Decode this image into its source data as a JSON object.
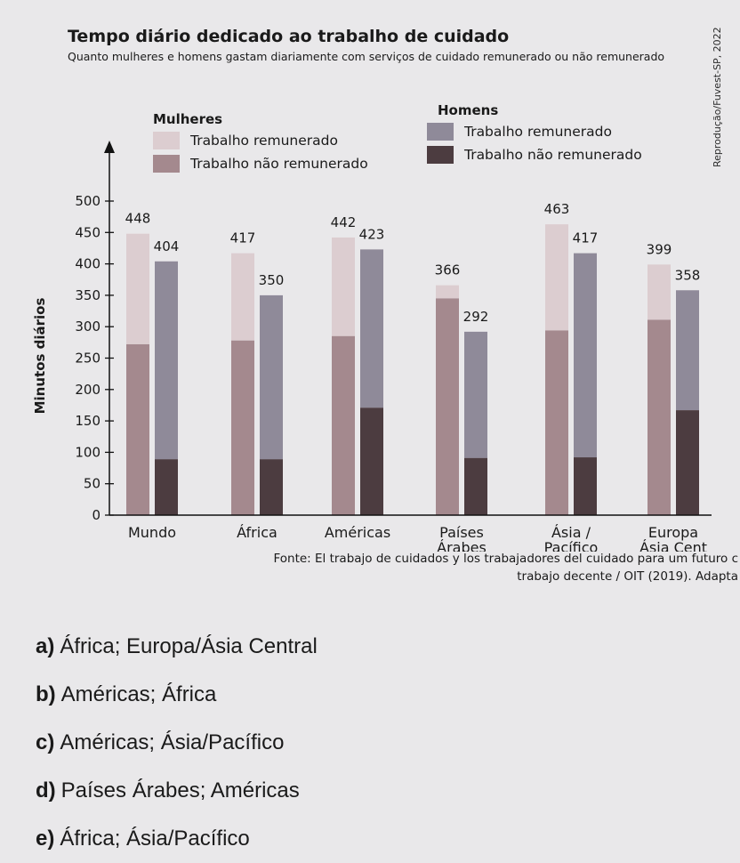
{
  "title": "Tempo diário dedicado ao trabalho de cuidado",
  "subtitle": "Quanto mulheres e homens gastam diariamente com serviços de cuidado remunerado ou não remunerado",
  "side_note": "Reprodução/Fuvest-SP, 2022",
  "legend": {
    "women_title": "Mulheres",
    "men_title": "Homens",
    "women_paid": "Trabalho remunerado",
    "women_unpaid": "Trabalho não remunerado",
    "men_paid": "Trabalho remunerado",
    "men_unpaid": "Trabalho não remunerado"
  },
  "colors": {
    "women_paid": "#dccdd0",
    "women_unpaid": "#a4898e",
    "men_paid": "#8f8a99",
    "men_unpaid": "#4c3c40"
  },
  "chart_data": {
    "type": "bar",
    "ylabel": "Minutos diários",
    "ylim": [
      0,
      500
    ],
    "yticks": [
      0,
      50,
      100,
      150,
      200,
      250,
      300,
      350,
      400,
      450,
      500
    ],
    "categories": [
      [
        "Mundo"
      ],
      [
        "África"
      ],
      [
        "Américas"
      ],
      [
        "Países",
        "Árabes"
      ],
      [
        "Ásia /",
        "Pacífico"
      ],
      [
        "Europa",
        "Ásia Cent"
      ]
    ],
    "series": [
      {
        "name": "Mulheres",
        "totals": [
          448,
          417,
          442,
          366,
          463,
          399
        ],
        "unpaid": [
          272,
          278,
          285,
          345,
          294,
          311
        ]
      },
      {
        "name": "Homens",
        "totals": [
          404,
          350,
          423,
          292,
          417,
          358
        ],
        "unpaid": [
          89,
          89,
          171,
          91,
          92,
          167
        ]
      }
    ]
  },
  "source": {
    "line1": "Fonte: El trabajo de cuidados y los trabajadores del cuidado para um futuro c",
    "line2": "trabajo decente / OIT (2019). Adapta"
  },
  "options": [
    {
      "letter": "a)",
      "text": "África; Europa/Ásia Central"
    },
    {
      "letter": "b)",
      "text": "Américas; África"
    },
    {
      "letter": "c)",
      "text": "Américas; Ásia/Pacífico"
    },
    {
      "letter": "d)",
      "text": "Países Árabes; Américas"
    },
    {
      "letter": "e)",
      "text": "África; Ásia/Pacífico"
    }
  ]
}
